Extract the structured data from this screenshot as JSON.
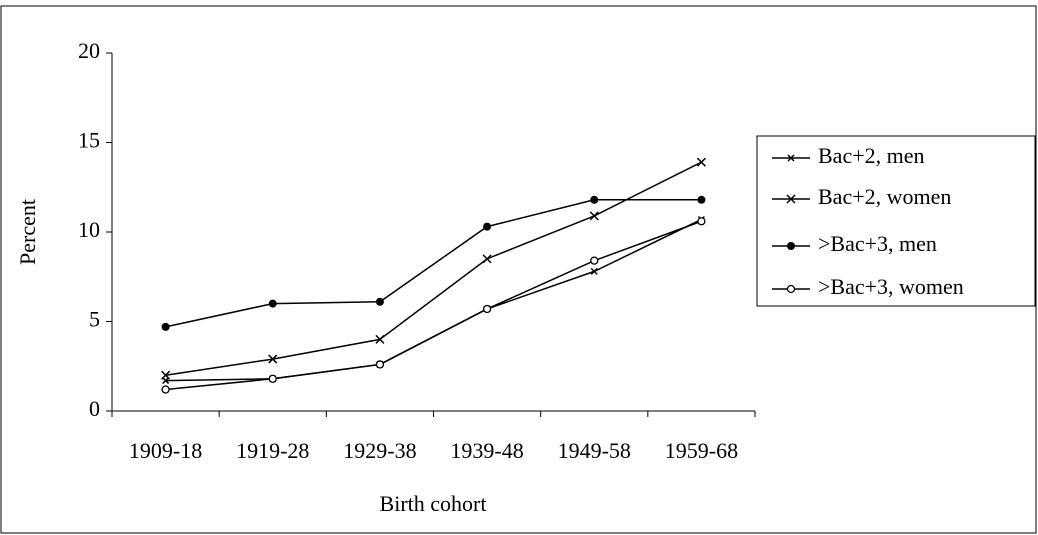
{
  "chart_data": {
    "type": "line",
    "x_label": "Birth cohort",
    "y_label": "Percent",
    "categories": [
      "1909-18",
      "1919-28",
      "1929-38",
      "1939-48",
      "1949-58",
      "1959-68"
    ],
    "series": [
      {
        "name": "Bac+2, men",
        "color": "#000000",
        "marker": "x-small",
        "values": [
          1.7,
          1.8,
          2.6,
          5.7,
          7.8,
          10.7
        ]
      },
      {
        "name": "Bac+2, women",
        "color": "#000000",
        "marker": "x",
        "values": [
          2.0,
          2.9,
          4.0,
          8.5,
          10.9,
          13.9
        ]
      },
      {
        "name": ">Bac+3, men",
        "color": "#000000",
        "marker": "dot",
        "values": [
          4.7,
          6.0,
          6.1,
          10.3,
          11.8,
          11.8
        ]
      },
      {
        "name": ">Bac+3, women",
        "color": "#000000",
        "marker": "circle",
        "values": [
          1.2,
          1.8,
          2.6,
          5.7,
          8.4,
          10.6
        ]
      }
    ],
    "ylim": [
      0,
      20
    ],
    "yticks": [
      0,
      5,
      10,
      15,
      20
    ],
    "legend": "right"
  }
}
